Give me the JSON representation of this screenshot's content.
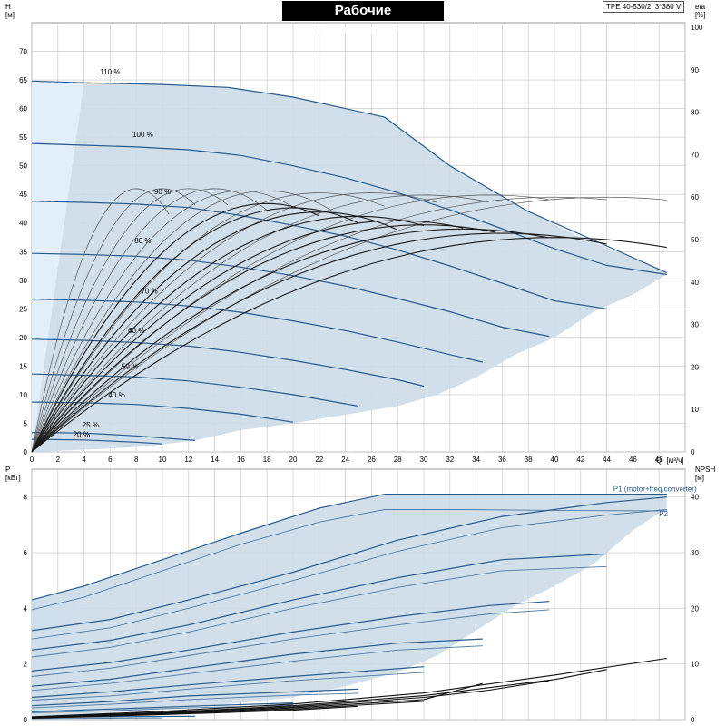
{
  "title": "Рабочие характеристики",
  "model": "TPE 40-530/2, 3*380 V",
  "colors": {
    "curve": "#2a5a8c",
    "fill": "#ccdbe8",
    "fill_light": "#e2eff9",
    "grid": "#c8c8c8",
    "eff": "#1a1a1a"
  },
  "chart_data": [
    {
      "type": "line",
      "name": "head",
      "ylabel": "H",
      "yunit": "[м]",
      "y2label": "eta",
      "y2unit": "[%]",
      "xlabel": "Q",
      "xunit": "[м³/ч]",
      "xlim": [
        0,
        50
      ],
      "ylim": [
        0,
        75
      ],
      "y2lim": [
        0,
        100
      ],
      "x_ticks": [
        0,
        2,
        4,
        6,
        8,
        10,
        12,
        14,
        16,
        18,
        20,
        22,
        24,
        26,
        28,
        30,
        32,
        34,
        36,
        38,
        40,
        42,
        44,
        46,
        48,
        50
      ],
      "y_ticks": [
        0,
        5,
        10,
        15,
        20,
        25,
        30,
        35,
        40,
        45,
        50,
        55,
        60,
        65,
        70
      ],
      "y2_ticks": [
        0,
        10,
        20,
        30,
        40,
        50,
        60,
        70,
        80,
        90,
        100
      ],
      "grid": true,
      "envelope": [
        [
          0,
          0
        ],
        [
          4,
          64.5
        ],
        [
          10,
          64.2
        ],
        [
          15,
          63.7
        ],
        [
          20,
          62
        ],
        [
          24,
          60
        ],
        [
          27,
          58.5
        ],
        [
          32,
          50
        ],
        [
          38,
          42
        ],
        [
          42,
          37.5
        ],
        [
          46,
          34
        ],
        [
          48.6,
          31.3
        ],
        [
          48.6,
          31
        ],
        [
          46,
          27.5
        ],
        [
          43,
          24.5
        ],
        [
          40,
          20
        ],
        [
          37,
          17
        ],
        [
          34,
          13
        ],
        [
          31,
          10
        ],
        [
          28,
          8
        ],
        [
          24,
          6.5
        ],
        [
          20,
          5
        ],
        [
          16,
          3.8
        ],
        [
          12.5,
          2
        ],
        [
          10,
          1.3
        ],
        [
          7,
          0.7
        ],
        [
          3,
          0.3
        ],
        [
          0,
          0
        ]
      ],
      "series": [
        {
          "speed_label": "110 %",
          "x": [
            0,
            4,
            10,
            15,
            20,
            24,
            27,
            32,
            38,
            44,
            48.6
          ],
          "y": [
            64.8,
            64.5,
            64.2,
            63.7,
            62,
            60,
            58.5,
            50,
            42,
            36,
            31.3
          ]
        },
        {
          "speed_label": "100 %",
          "x": [
            0,
            4,
            8,
            12,
            16,
            20,
            24,
            28,
            32,
            36,
            40,
            44,
            48.6
          ],
          "y": [
            53.9,
            53.6,
            53.3,
            52.8,
            51.8,
            50,
            47.9,
            45.3,
            42.3,
            39,
            35.5,
            32.6,
            31
          ]
        },
        {
          "speed_label": "90 %",
          "x": [
            0,
            4,
            8,
            12,
            16,
            20,
            24,
            28,
            32,
            36,
            40,
            44
          ],
          "y": [
            43.8,
            43.6,
            43.3,
            42.7,
            41.3,
            39.6,
            37.7,
            35.3,
            32.5,
            29.5,
            26.4,
            25
          ]
        },
        {
          "speed_label": "80 %",
          "x": [
            0,
            4,
            8,
            12,
            16,
            20,
            24,
            28,
            32,
            36,
            39.6
          ],
          "y": [
            34.7,
            34.5,
            34.2,
            33.5,
            32.3,
            30.8,
            29,
            26.8,
            24.5,
            21.8,
            20.2
          ]
        },
        {
          "speed_label": "70 %",
          "x": [
            0,
            4,
            8,
            12,
            16,
            20,
            24,
            28,
            32,
            34.5
          ],
          "y": [
            26.7,
            26.5,
            26.2,
            25.5,
            24.4,
            22.9,
            21.2,
            19.2,
            17,
            15.7
          ]
        },
        {
          "speed_label": "60 %",
          "x": [
            0,
            4,
            8,
            12,
            16,
            20,
            24,
            28,
            30
          ],
          "y": [
            19.7,
            19.5,
            19.1,
            18.5,
            17.4,
            16,
            14.4,
            12.6,
            11.5
          ]
        },
        {
          "speed_label": "50 %",
          "x": [
            0,
            4,
            8,
            12,
            16,
            20,
            24,
            25
          ],
          "y": [
            13.6,
            13.4,
            13.1,
            12.4,
            11.3,
            10,
            8.4,
            8
          ]
        },
        {
          "speed_label": "40 %",
          "x": [
            0,
            4,
            8,
            12,
            16,
            20
          ],
          "y": [
            8.7,
            8.6,
            8.3,
            7.6,
            6.6,
            5.2
          ]
        },
        {
          "speed_label": "25 %",
          "x": [
            0,
            4,
            8,
            12.5
          ],
          "y": [
            3.4,
            3.3,
            2.8,
            2
          ]
        },
        {
          "speed_label": "20 %",
          "x": [
            0,
            4,
            8,
            10
          ],
          "y": [
            2.2,
            2.1,
            1.7,
            1.4
          ]
        }
      ],
      "efficiency_curves": [
        {
          "peak_eta": 62,
          "q_peak": 8,
          "q_end": 10.5
        },
        {
          "peak_eta": 62,
          "q_peak": 10,
          "q_end": 12.5
        },
        {
          "peak_eta": 62,
          "q_peak": 12,
          "q_end": 15
        },
        {
          "peak_eta": 62,
          "q_peak": 14,
          "q_end": 18
        },
        {
          "peak_eta": 61.5,
          "q_peak": 16,
          "q_end": 20
        },
        {
          "peak_eta": 61.5,
          "q_peak": 18,
          "q_end": 23
        },
        {
          "peak_eta": 61,
          "q_peak": 22,
          "q_end": 27
        },
        {
          "peak_eta": 61,
          "q_peak": 26,
          "q_end": 31
        },
        {
          "peak_eta": 60.5,
          "q_peak": 30,
          "q_end": 35
        },
        {
          "peak_eta": 60.5,
          "q_peak": 35,
          "q_end": 39.5
        },
        {
          "peak_eta": 60,
          "q_peak": 40,
          "q_end": 44
        },
        {
          "peak_eta": 60,
          "q_peak": 44,
          "q_end": 48.6
        },
        {
          "peak_eta": 58.5,
          "q_peak": 18,
          "q_end": 22
        },
        {
          "peak_eta": 57.5,
          "q_peak": 20,
          "q_end": 25
        },
        {
          "peak_eta": 56.5,
          "q_peak": 22,
          "q_end": 28
        },
        {
          "peak_eta": 55.5,
          "q_peak": 25,
          "q_end": 30
        },
        {
          "peak_eta": 54.5,
          "q_peak": 28,
          "q_end": 33
        },
        {
          "peak_eta": 53.5,
          "q_peak": 30,
          "q_end": 35.5
        },
        {
          "peak_eta": 52.5,
          "q_peak": 33,
          "q_end": 39.5
        },
        {
          "peak_eta": 51.5,
          "q_peak": 36,
          "q_end": 44
        },
        {
          "peak_eta": 50.5,
          "q_peak": 40,
          "q_end": 48.6
        }
      ]
    },
    {
      "type": "line",
      "name": "power",
      "ylabel": "P",
      "yunit": "[кВт]",
      "y2label": "NPSH",
      "y2unit": "[м]",
      "xlim": [
        0,
        50
      ],
      "ylim": [
        0,
        9
      ],
      "y2lim": [
        0,
        45
      ],
      "y_ticks": [
        0,
        2,
        4,
        6,
        8
      ],
      "y2_ticks": [
        0,
        10,
        20,
        30,
        40
      ],
      "grid": true,
      "envelope": [
        [
          0,
          0
        ],
        [
          0,
          4.3
        ],
        [
          4,
          4.8
        ],
        [
          10,
          5.75
        ],
        [
          16,
          6.7
        ],
        [
          22,
          7.6
        ],
        [
          27,
          8.1
        ],
        [
          33,
          8.1
        ],
        [
          40,
          8.1
        ],
        [
          48.6,
          8.1
        ],
        [
          48.6,
          7.6
        ],
        [
          46,
          6.8
        ],
        [
          43,
          5.6
        ],
        [
          40,
          4.8
        ],
        [
          37,
          4.1
        ],
        [
          34,
          3.2
        ],
        [
          31,
          2.3
        ],
        [
          28,
          1.7
        ],
        [
          24,
          1.2
        ],
        [
          20,
          0.8
        ],
        [
          16,
          0.6
        ],
        [
          12,
          0.45
        ],
        [
          8,
          0.32
        ],
        [
          4,
          0.2
        ],
        [
          0,
          0
        ]
      ],
      "series_labels": [
        "P1 (motor+freq.converter)",
        "P2"
      ],
      "series": [
        {
          "x": [
            0,
            4,
            10,
            16,
            22,
            27,
            33,
            40,
            48.6
          ],
          "y": [
            4.3,
            4.8,
            5.75,
            6.7,
            7.6,
            8.1,
            8.1,
            8.1,
            8.1
          ]
        },
        {
          "x": [
            0,
            4,
            10,
            16,
            22,
            27,
            33,
            40,
            48.6
          ],
          "y": [
            3.95,
            4.4,
            5.35,
            6.3,
            7.1,
            7.55,
            7.55,
            7.52,
            7.5
          ]
        },
        {
          "x": [
            0,
            6,
            12,
            20,
            28,
            36,
            44,
            48.6
          ],
          "y": [
            3.2,
            3.6,
            4.3,
            5.3,
            6.45,
            7.3,
            7.8,
            8
          ]
        },
        {
          "x": [
            0,
            6,
            12,
            20,
            28,
            36,
            44,
            48.6
          ],
          "y": [
            2.9,
            3.3,
            4,
            5,
            6.05,
            6.9,
            7.35,
            7.55
          ]
        },
        {
          "x": [
            0,
            6,
            12,
            20,
            28,
            36,
            44
          ],
          "y": [
            2.5,
            2.85,
            3.4,
            4.3,
            5.1,
            5.75,
            5.95
          ]
        },
        {
          "x": [
            0,
            6,
            12,
            20,
            28,
            36,
            44
          ],
          "y": [
            2.25,
            2.6,
            3.15,
            4,
            4.75,
            5.35,
            5.5
          ]
        },
        {
          "x": [
            0,
            6,
            12,
            20,
            28,
            35,
            39.6
          ],
          "y": [
            1.75,
            2.05,
            2.5,
            3.15,
            3.7,
            4.1,
            4.25
          ]
        },
        {
          "x": [
            0,
            6,
            12,
            20,
            28,
            35,
            39.6
          ],
          "y": [
            1.55,
            1.85,
            2.3,
            2.9,
            3.4,
            3.8,
            3.95
          ]
        },
        {
          "x": [
            0,
            6,
            12,
            20,
            28,
            34.5
          ],
          "y": [
            1.2,
            1.45,
            1.85,
            2.35,
            2.75,
            2.9
          ]
        },
        {
          "x": [
            0,
            6,
            12,
            20,
            28,
            34.5
          ],
          "y": [
            1.05,
            1.3,
            1.65,
            2.1,
            2.5,
            2.65
          ]
        },
        {
          "x": [
            0,
            6,
            12,
            20,
            30
          ],
          "y": [
            0.8,
            1,
            1.25,
            1.55,
            1.9
          ]
        },
        {
          "x": [
            0,
            6,
            12,
            20,
            30
          ],
          "y": [
            0.7,
            0.85,
            1.1,
            1.4,
            1.7
          ]
        },
        {
          "x": [
            0,
            6,
            12,
            20,
            25
          ],
          "y": [
            0.5,
            0.65,
            0.85,
            1,
            1.1
          ]
        },
        {
          "x": [
            0,
            6,
            12,
            20,
            25
          ],
          "y": [
            0.42,
            0.55,
            0.72,
            0.88,
            0.95
          ]
        },
        {
          "x": [
            0,
            6,
            12,
            20
          ],
          "y": [
            0.28,
            0.38,
            0.48,
            0.6
          ]
        },
        {
          "x": [
            0,
            6,
            12,
            20
          ],
          "y": [
            0.24,
            0.32,
            0.42,
            0.52
          ]
        },
        {
          "x": [
            0,
            6,
            12.5
          ],
          "y": [
            0.08,
            0.1,
            0.12
          ]
        },
        {
          "x": [
            0,
            6,
            10
          ],
          "y": [
            0.04,
            0.05,
            0.06
          ]
        }
      ],
      "npsh_curves": [
        {
          "x": [
            0,
            10,
            20,
            30,
            40,
            48.6
          ],
          "y": [
            0.5,
            1.5,
            2.8,
            4.8,
            8,
            11
          ]
        },
        {
          "x": [
            0,
            10,
            20,
            30,
            40,
            44
          ],
          "y": [
            0.45,
            1.3,
            2.5,
            4.3,
            7.2,
            9
          ]
        },
        {
          "x": [
            0,
            10,
            20,
            30,
            35,
            39.6
          ],
          "y": [
            0.4,
            1.2,
            2.3,
            4,
            5.3,
            7
          ]
        },
        {
          "x": [
            0,
            10,
            20,
            30,
            34.5
          ],
          "y": [
            0.35,
            1.1,
            2.1,
            3.6,
            6.5
          ]
        },
        {
          "x": [
            0,
            10,
            20,
            30
          ],
          "y": [
            0.3,
            1,
            1.9,
            3.3
          ]
        },
        {
          "x": [
            0,
            10,
            20,
            25
          ],
          "y": [
            0.25,
            0.9,
            1.7,
            2.4
          ]
        }
      ]
    }
  ]
}
